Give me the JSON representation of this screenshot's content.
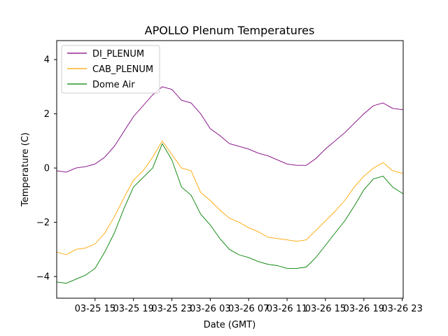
{
  "chart_data": {
    "type": "line",
    "title": "APOLLO Plenum Temperatures",
    "xlabel": "Date (GMT)",
    "ylabel": "Temperature (C)",
    "x_unit": "hours since 03-25 11:00 GMT",
    "xlim": [
      0,
      36.1
    ],
    "ylim": [
      -4.8,
      4.7
    ],
    "x_ticks": [
      {
        "x": 4,
        "label": "03-25 15"
      },
      {
        "x": 8,
        "label": "03-25 19"
      },
      {
        "x": 12,
        "label": "03-25 23"
      },
      {
        "x": 16,
        "label": "03-26 03"
      },
      {
        "x": 20,
        "label": "03-26 07"
      },
      {
        "x": 24,
        "label": "03-26 11"
      },
      {
        "x": 28,
        "label": "03-26 15"
      },
      {
        "x": 32,
        "label": "03-26 19"
      },
      {
        "x": 36,
        "label": "03-26 23"
      }
    ],
    "y_ticks": [
      {
        "y": -4,
        "label": "−4"
      },
      {
        "y": -2,
        "label": "−2"
      },
      {
        "y": 0,
        "label": "0"
      },
      {
        "y": 2,
        "label": "2"
      },
      {
        "y": 4,
        "label": "4"
      }
    ],
    "grid": false,
    "legend_position": "top-left",
    "series": [
      {
        "name": "DI_PLENUM",
        "color": "#800080",
        "x": [
          0,
          1,
          2,
          3,
          4,
          5,
          6,
          7,
          8,
          9,
          10,
          11,
          12,
          13,
          14,
          15,
          16,
          17,
          18,
          19,
          20,
          21,
          22,
          23,
          24,
          25,
          26,
          27,
          28,
          29,
          30,
          31,
          32,
          33,
          34,
          35,
          36.1
        ],
        "values": [
          -0.1,
          -0.15,
          0.0,
          0.05,
          0.15,
          0.4,
          0.8,
          1.35,
          1.9,
          2.3,
          2.7,
          3.0,
          2.9,
          2.5,
          2.4,
          2.0,
          1.45,
          1.2,
          0.9,
          0.8,
          0.7,
          0.55,
          0.45,
          0.3,
          0.15,
          0.1,
          0.1,
          0.35,
          0.7,
          1.0,
          1.3,
          1.65,
          2.0,
          2.3,
          2.4,
          2.2,
          2.15
        ]
      },
      {
        "name": "CAB_PLENUM",
        "color": "#ffa500",
        "x": [
          0,
          1,
          2,
          3,
          4,
          5,
          6,
          7,
          8,
          9,
          10,
          11,
          12,
          13,
          14,
          15,
          16,
          17,
          18,
          19,
          20,
          21,
          22,
          23,
          24,
          25,
          26,
          27,
          28,
          29,
          30,
          31,
          32,
          33,
          34,
          35,
          36.1
        ],
        "values": [
          -3.1,
          -3.2,
          -3.0,
          -2.95,
          -2.8,
          -2.4,
          -1.8,
          -1.1,
          -0.45,
          -0.1,
          0.4,
          1.0,
          0.5,
          0.0,
          -0.1,
          -0.9,
          -1.2,
          -1.55,
          -1.85,
          -2.0,
          -2.2,
          -2.35,
          -2.55,
          -2.6,
          -2.65,
          -2.7,
          -2.65,
          -2.3,
          -1.95,
          -1.6,
          -1.2,
          -0.7,
          -0.3,
          0.0,
          0.2,
          -0.1,
          -0.2
        ]
      },
      {
        "name": "Dome Air",
        "color": "#008000",
        "x": [
          0,
          1,
          2,
          3,
          4,
          5,
          6,
          7,
          8,
          9,
          10,
          11,
          12,
          13,
          14,
          15,
          16,
          17,
          18,
          19,
          20,
          21,
          22,
          23,
          24,
          25,
          26,
          27,
          28,
          29,
          30,
          31,
          32,
          33,
          34,
          35,
          36.1
        ],
        "values": [
          -4.2,
          -4.25,
          -4.1,
          -3.95,
          -3.7,
          -3.1,
          -2.4,
          -1.5,
          -0.7,
          -0.35,
          0.0,
          0.9,
          0.3,
          -0.7,
          -1.0,
          -1.7,
          -2.1,
          -2.6,
          -3.0,
          -3.2,
          -3.3,
          -3.45,
          -3.55,
          -3.6,
          -3.7,
          -3.7,
          -3.65,
          -3.3,
          -2.85,
          -2.4,
          -1.95,
          -1.4,
          -0.8,
          -0.4,
          -0.3,
          -0.7,
          -0.95
        ]
      }
    ]
  }
}
